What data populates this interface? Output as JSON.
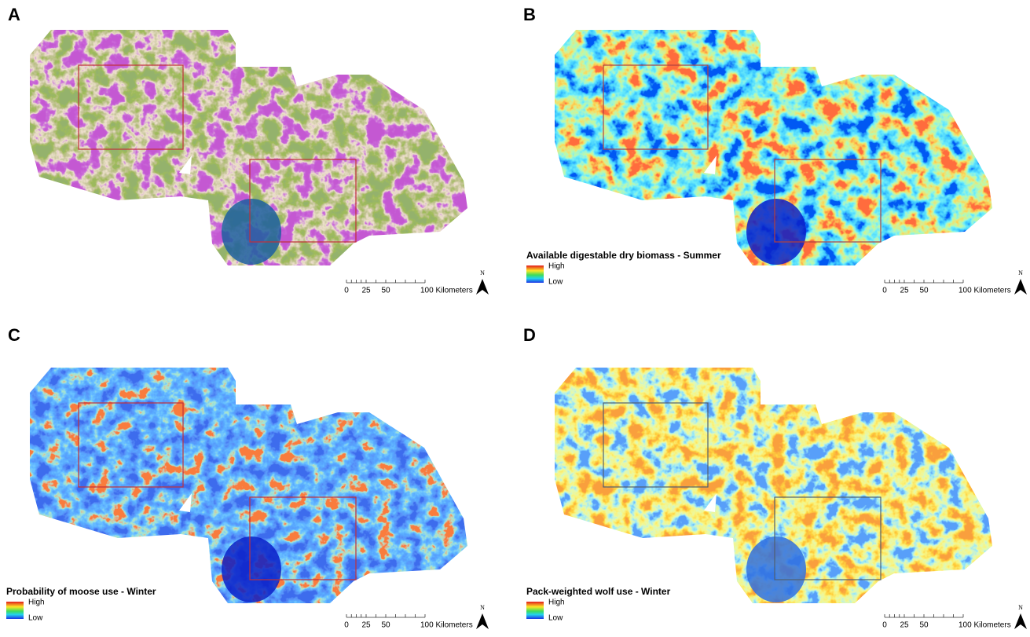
{
  "panels": [
    {
      "letter": "A",
      "scale_bar": [
        "0",
        "25",
        "50",
        "100 Kilometers"
      ],
      "north": "N"
    },
    {
      "letter": "B",
      "legend": {
        "title": "Available digestable dry biomass - Summer",
        "high": "High",
        "low": "Low"
      },
      "scale_bar": [
        "0",
        "25",
        "50",
        "100 Kilometers"
      ],
      "north": "N"
    },
    {
      "letter": "C",
      "legend": {
        "title": "Probability of moose use - Winter",
        "high": "High",
        "low": "Low"
      },
      "scale_bar": [
        "0",
        "25",
        "50",
        "100 Kilometers"
      ],
      "north": "N"
    },
    {
      "letter": "D",
      "legend": {
        "title": "Pack-weighted wolf use - Winter",
        "high": "High",
        "low": "Low"
      },
      "scale_bar": [
        "0",
        "25",
        "50",
        "100 Kilometers"
      ],
      "north": "N"
    }
  ]
}
